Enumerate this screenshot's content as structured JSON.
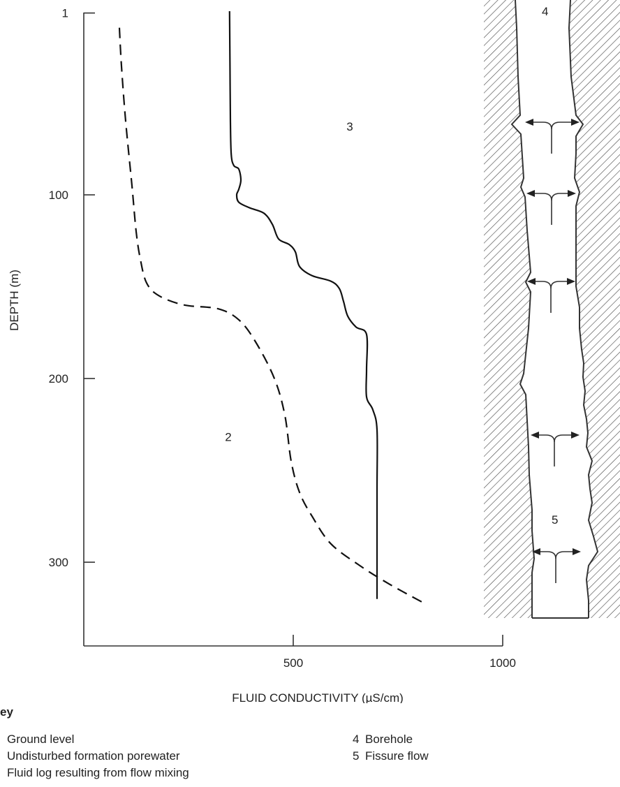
{
  "chart_data": {
    "type": "line",
    "title": "",
    "xlabel": "FLUID CONDUCTIVITY (µS/cm)",
    "ylabel": "DEPTH (m)",
    "xlim": [
      0,
      1000
    ],
    "ylim": [
      0,
      330
    ],
    "y_inverted": true,
    "x_ticks": [
      {
        "value": 500,
        "label": "500"
      },
      {
        "value": 1000,
        "label": "1000"
      }
    ],
    "y_ticks": [
      {
        "value": 1,
        "label": "1"
      },
      {
        "value": 100,
        "label": "100"
      },
      {
        "value": 200,
        "label": "200"
      },
      {
        "value": 300,
        "label": "300"
      }
    ],
    "grid": false,
    "series": [
      {
        "key": "2",
        "style": "dashed",
        "points": [
          [
            85,
            9
          ],
          [
            90,
            30
          ],
          [
            100,
            60
          ],
          [
            115,
            95
          ],
          [
            125,
            120
          ],
          [
            135,
            135
          ],
          [
            150,
            148
          ],
          [
            180,
            155
          ],
          [
            240,
            160
          ],
          [
            320,
            162
          ],
          [
            370,
            168
          ],
          [
            410,
            180
          ],
          [
            455,
            200
          ],
          [
            480,
            220
          ],
          [
            495,
            245
          ],
          [
            515,
            262
          ],
          [
            545,
            275
          ],
          [
            590,
            290
          ],
          [
            660,
            302
          ],
          [
            730,
            312
          ],
          [
            810,
            322
          ]
        ]
      },
      {
        "key": "3",
        "style": "solid",
        "points": [
          [
            348,
            0
          ],
          [
            349,
            30
          ],
          [
            350,
            60
          ],
          [
            352,
            78
          ],
          [
            358,
            84
          ],
          [
            370,
            86
          ],
          [
            375,
            92
          ],
          [
            370,
            97
          ],
          [
            365,
            100
          ],
          [
            370,
            104
          ],
          [
            395,
            107
          ],
          [
            430,
            110
          ],
          [
            450,
            116
          ],
          [
            465,
            124
          ],
          [
            490,
            127
          ],
          [
            505,
            131
          ],
          [
            515,
            139
          ],
          [
            545,
            144
          ],
          [
            590,
            147
          ],
          [
            610,
            151
          ],
          [
            620,
            158
          ],
          [
            630,
            166
          ],
          [
            650,
            172
          ],
          [
            675,
            176
          ],
          [
            675,
            195
          ],
          [
            675,
            210
          ],
          [
            690,
            217
          ],
          [
            700,
            228
          ],
          [
            700,
            260
          ],
          [
            700,
            300
          ],
          [
            700,
            320
          ]
        ]
      }
    ],
    "annotations": [
      {
        "label": "2",
        "x": 345,
        "y": 234
      },
      {
        "label": "3",
        "x": 635,
        "y": 65
      }
    ],
    "diagram": {
      "borehole_label": "4",
      "fissure_label": "5"
    }
  },
  "key": {
    "heading": "ey",
    "left_items": [
      {
        "text": "Ground level"
      },
      {
        "text": "Undisturbed formation porewater"
      },
      {
        "text": "Fluid log resulting from flow mixing"
      }
    ],
    "right_items": [
      {
        "num": "4",
        "text": "Borehole"
      },
      {
        "num": "5",
        "text": "Fissure flow"
      }
    ]
  }
}
